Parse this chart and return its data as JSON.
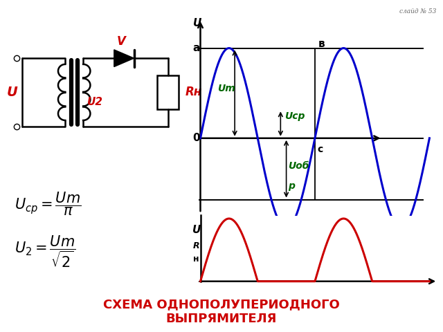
{
  "title": "СХЕМА ОДНОПОЛУПЕРИОДНОГО\nВЫПРЯМИТЕЛЯ",
  "title_color": "#cc0000",
  "slide_label": "слайд № 53",
  "background_color": "#ffffff",
  "blue_color": "#0000cc",
  "red_color": "#cc0000",
  "black_color": "#000000",
  "dark_green": "#006600",
  "Um": 1.0,
  "Ucp": 0.3183,
  "Uob": 0.6817,
  "label_a": "a",
  "label_0": "0",
  "label_b": "в",
  "label_c": "c",
  "label_U": "U",
  "label_Um": "Um",
  "label_Ucp": "Ucp",
  "label_Uob": "Uоб",
  "label_p": "р",
  "circuit_U": "U",
  "circuit_U2": "U2",
  "circuit_V": "V",
  "circuit_Rn": "Rн"
}
